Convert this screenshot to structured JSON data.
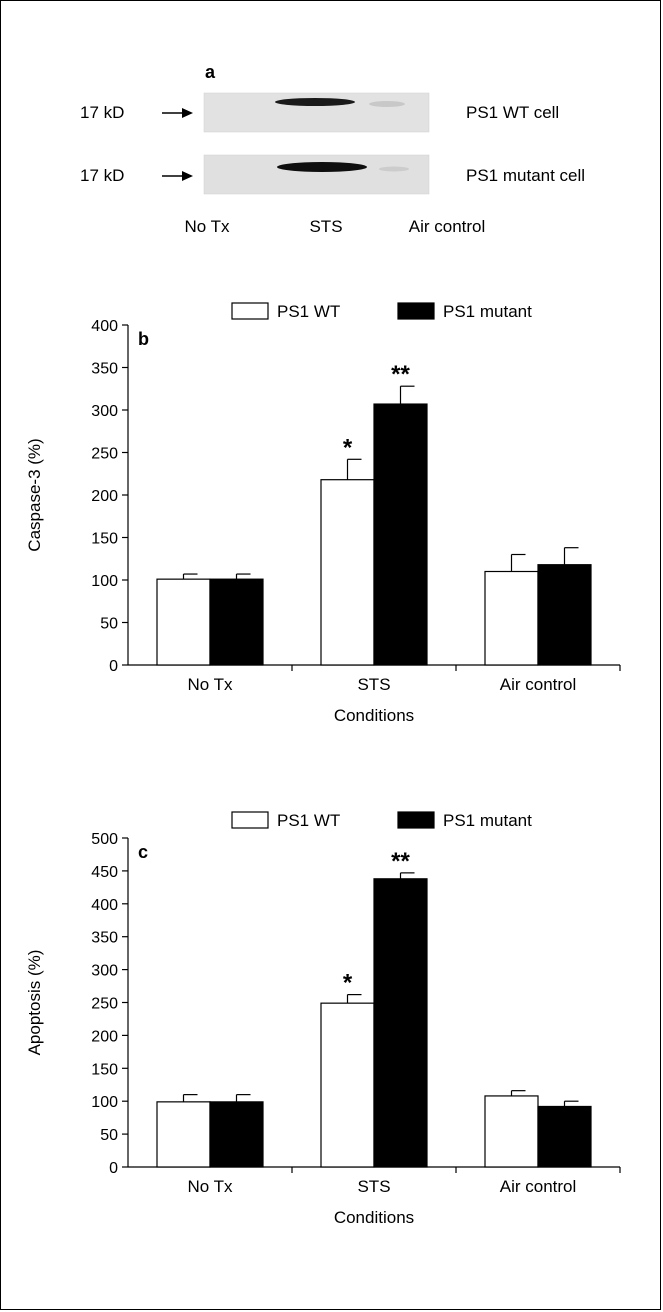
{
  "panel_a": {
    "label": "a",
    "rows": [
      {
        "marker": "17 kD",
        "cell_label": "PS1 WT cell",
        "band_intensity": [
          0.0,
          1.0,
          0.15
        ]
      },
      {
        "marker": "17 kD",
        "cell_label": "PS1 mutant cell",
        "band_intensity": [
          0.0,
          1.0,
          0.1
        ]
      }
    ],
    "lanes": [
      "No Tx",
      "STS",
      "Air control"
    ]
  },
  "chart_data": [
    {
      "type": "bar",
      "panel_label": "b",
      "categories": [
        "No Tx",
        "STS",
        "Air control"
      ],
      "series": [
        {
          "name": "PS1 WT",
          "color": "#ffffff",
          "values": [
            101,
            218,
            110
          ],
          "errors": [
            6,
            24,
            20
          ],
          "significance": [
            "",
            "*",
            ""
          ]
        },
        {
          "name": "PS1 mutant",
          "color": "#000000",
          "values": [
            101,
            307,
            118
          ],
          "errors": [
            6,
            21,
            20
          ],
          "significance": [
            "",
            "**",
            ""
          ]
        }
      ],
      "xlabel": "Conditions",
      "ylabel": "Caspase-3 (%)",
      "ylim": [
        0,
        400
      ],
      "yticks": [
        0,
        50,
        100,
        150,
        200,
        250,
        300,
        350,
        400
      ],
      "legend": "top",
      "grid": false
    },
    {
      "type": "bar",
      "panel_label": "c",
      "categories": [
        "No Tx",
        "STS",
        "Air control"
      ],
      "series": [
        {
          "name": "PS1 WT",
          "color": "#ffffff",
          "values": [
            99,
            249,
            108
          ],
          "errors": [
            11,
            13,
            8
          ],
          "significance": [
            "",
            "*",
            ""
          ]
        },
        {
          "name": "PS1 mutant",
          "color": "#000000",
          "values": [
            99,
            438,
            92
          ],
          "errors": [
            11,
            9,
            8
          ],
          "significance": [
            "",
            "**",
            ""
          ]
        }
      ],
      "xlabel": "Conditions",
      "ylabel": "Apoptosis (%)",
      "ylim": [
        0,
        500
      ],
      "yticks": [
        0,
        50,
        100,
        150,
        200,
        250,
        300,
        350,
        400,
        450,
        500
      ],
      "legend": "top",
      "grid": false
    }
  ]
}
